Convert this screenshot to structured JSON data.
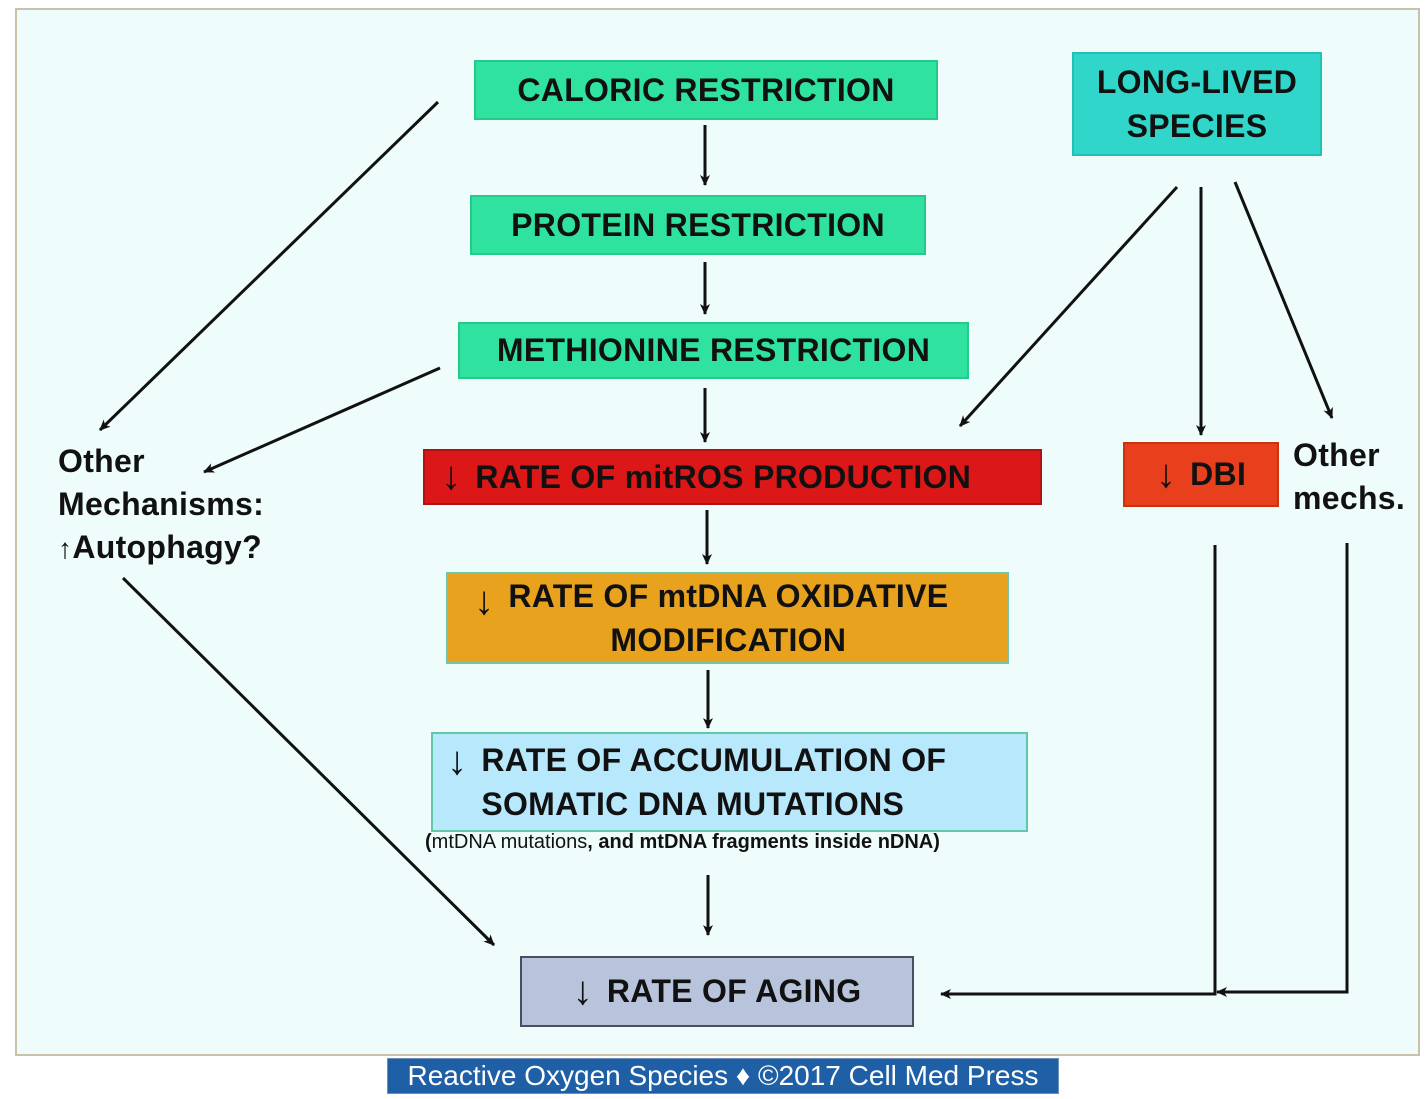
{
  "boxes": {
    "caloric": "CALORIC RESTRICTION",
    "protein": "PROTEIN RESTRICTION",
    "methionine": "METHIONINE RESTRICTION",
    "long_lived_line1": "LONG-LIVED",
    "long_lived_line2": "SPECIES",
    "mitros": "RATE OF mitROS PRODUCTION",
    "dbi": "DBI",
    "mtdna_line1": "RATE OF mtDNA OXIDATIVE",
    "mtdna_line2": "MODIFICATION",
    "somatic_line1": "RATE OF ACCUMULATION OF",
    "somatic_line2": "SOMATIC DNA MUTATIONS",
    "aging": "RATE OF AGING"
  },
  "arrow_glyphs": {
    "down": "↓",
    "up": "↑"
  },
  "labels": {
    "other_line1": "Other",
    "other_line2": "Mechanisms:",
    "other_line3": "Autophagy?",
    "other_mechs_line1": "Other",
    "other_mechs_line2": "mechs."
  },
  "note": {
    "open": "(",
    "part1": "mtDNA mutations",
    "part2": ", and mtDNA fragments inside nDNA)"
  },
  "footer": "Reactive Oxygen Species ♦ ©2017 Cell Med Press",
  "colors": {
    "green": "#2fe2a0",
    "teal": "#2fd6c9",
    "red": "#dc1717",
    "dbi": "#e8401c",
    "orange": "#e8a21e",
    "light_blue": "#b8e8fb",
    "gray_blue": "#b8c3dc",
    "background": "#eefcfb",
    "footer": "#1f5fa6"
  }
}
